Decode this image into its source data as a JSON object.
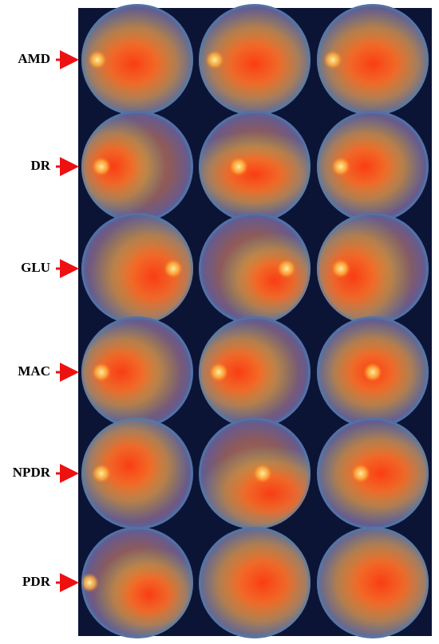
{
  "rows": [
    {
      "label": "AMD"
    },
    {
      "label": "DR"
    },
    {
      "label": "GLU"
    },
    {
      "label": "MAC"
    },
    {
      "label": "NPDR"
    },
    {
      "label": "PDR"
    }
  ]
}
